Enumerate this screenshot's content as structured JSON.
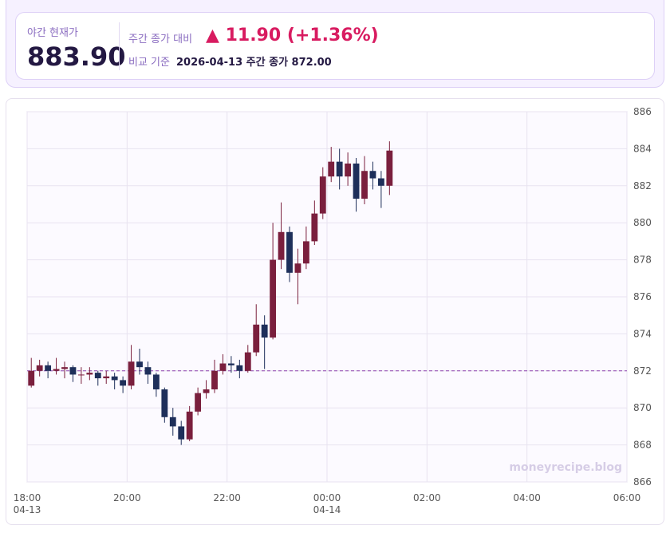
{
  "summary": {
    "label": "야간 현재가",
    "price": "883.90",
    "compare_label": "주간 종가 대비",
    "change": "▲ 11.90 (+1.36%)",
    "base_label": "비교 기준",
    "base_value": "2026-04-13 주간 종가 872.00"
  },
  "colors": {
    "up": "#7a1f3d",
    "down": "#1e2f5a",
    "change": "#d81b60",
    "reference": "#8e44ad"
  },
  "chart_data": {
    "type": "candlestick",
    "interval_minutes": 10,
    "ylim": [
      866,
      886
    ],
    "yticks": [
      "866",
      "868",
      "870",
      "872",
      "874",
      "876",
      "878",
      "880",
      "882",
      "884",
      "886"
    ],
    "xticks": [
      {
        "t": "18:00",
        "d": "04-13"
      },
      {
        "t": "20:00",
        "d": ""
      },
      {
        "t": "22:00",
        "d": ""
      },
      {
        "t": "00:00",
        "d": "04-14"
      },
      {
        "t": "02:00",
        "d": ""
      },
      {
        "t": "04:00",
        "d": ""
      },
      {
        "t": "06:00",
        "d": ""
      }
    ],
    "xrange": [
      "18:00",
      "06:00"
    ],
    "reference_line": 872.0,
    "grid": true,
    "watermark": "moneyrecipe.blog",
    "candles": [
      [
        "18:00",
        871.2,
        872.7,
        871.1,
        872.0
      ],
      [
        "18:10",
        872.0,
        872.6,
        871.7,
        872.3
      ],
      [
        "18:20",
        872.3,
        872.5,
        871.6,
        872.0
      ],
      [
        "18:30",
        872.0,
        872.7,
        871.8,
        872.1
      ],
      [
        "18:40",
        872.1,
        872.5,
        871.6,
        872.2
      ],
      [
        "18:50",
        872.2,
        872.3,
        871.4,
        871.8
      ],
      [
        "19:00",
        871.8,
        872.2,
        871.3,
        871.8
      ],
      [
        "19:10",
        871.8,
        872.2,
        871.5,
        871.9
      ],
      [
        "19:20",
        871.9,
        872.0,
        871.2,
        871.6
      ],
      [
        "19:30",
        871.6,
        872.0,
        871.3,
        871.7
      ],
      [
        "19:40",
        871.7,
        871.9,
        871.0,
        871.5
      ],
      [
        "19:50",
        871.5,
        871.7,
        870.8,
        871.2
      ],
      [
        "20:00",
        871.2,
        873.4,
        871.0,
        872.5
      ],
      [
        "20:10",
        872.5,
        873.2,
        871.8,
        872.2
      ],
      [
        "20:20",
        872.2,
        872.5,
        871.3,
        871.8
      ],
      [
        "20:30",
        871.8,
        871.9,
        870.6,
        871.0
      ],
      [
        "20:40",
        871.0,
        871.1,
        869.2,
        869.5
      ],
      [
        "20:50",
        869.5,
        870.0,
        868.5,
        869.0
      ],
      [
        "21:00",
        869.0,
        869.3,
        868.0,
        868.3
      ],
      [
        "21:10",
        868.3,
        870.1,
        868.2,
        869.8
      ],
      [
        "21:20",
        869.8,
        871.1,
        869.6,
        870.8
      ],
      [
        "21:30",
        870.8,
        871.5,
        870.5,
        871.0
      ],
      [
        "21:40",
        871.0,
        872.6,
        870.8,
        872.0
      ],
      [
        "21:50",
        872.0,
        872.9,
        871.8,
        872.4
      ],
      [
        "22:00",
        872.4,
        872.8,
        871.9,
        872.3
      ],
      [
        "22:10",
        872.3,
        872.6,
        871.6,
        872.0
      ],
      [
        "22:20",
        872.0,
        873.4,
        871.9,
        873.0
      ],
      [
        "22:30",
        873.0,
        875.6,
        872.8,
        874.5
      ],
      [
        "22:40",
        874.5,
        875.0,
        872.1,
        873.8
      ],
      [
        "22:50",
        873.8,
        880.0,
        873.7,
        878.0
      ],
      [
        "23:00",
        878.0,
        881.1,
        877.5,
        879.5
      ],
      [
        "23:10",
        879.5,
        879.8,
        876.8,
        877.3
      ],
      [
        "23:20",
        877.3,
        878.6,
        875.6,
        877.8
      ],
      [
        "23:30",
        877.8,
        879.8,
        877.5,
        879.0
      ],
      [
        "23:40",
        879.0,
        881.2,
        878.8,
        880.5
      ],
      [
        "23:50",
        880.5,
        883.0,
        880.2,
        882.5
      ],
      [
        "00:00",
        882.5,
        884.1,
        882.2,
        883.3
      ],
      [
        "00:10",
        883.3,
        884.0,
        881.8,
        882.5
      ],
      [
        "00:20",
        882.5,
        883.8,
        882.0,
        883.2
      ],
      [
        "00:30",
        883.2,
        883.5,
        880.6,
        881.3
      ],
      [
        "00:40",
        881.3,
        883.6,
        881.0,
        882.8
      ],
      [
        "00:50",
        882.8,
        883.3,
        881.8,
        882.4
      ],
      [
        "01:00",
        882.4,
        882.8,
        880.8,
        882.0
      ],
      [
        "01:10",
        882.0,
        884.4,
        881.5,
        883.9
      ]
    ]
  }
}
